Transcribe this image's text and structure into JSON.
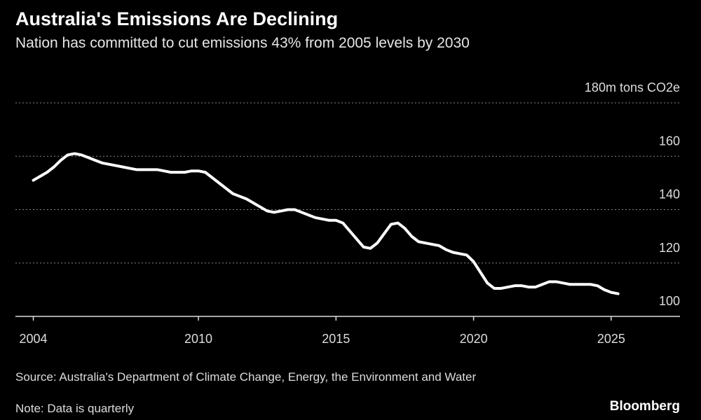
{
  "chart_data": {
    "type": "line",
    "title": "Australia's Emissions Are Declining",
    "subtitle": "Nation has committed to cut emissions 43% from 2005 levels by 2030",
    "source": "Source: Australia's Department of Climate Change, Energy, the Environment and Water",
    "note": "Note: Data is quarterly",
    "credit": "Bloomberg",
    "x": [
      2004,
      2004.25,
      2004.5,
      2004.75,
      2005,
      2005.25,
      2005.5,
      2005.75,
      2006,
      2006.25,
      2006.5,
      2006.75,
      2007,
      2007.25,
      2007.5,
      2007.75,
      2008,
      2008.25,
      2008.5,
      2008.75,
      2009,
      2009.25,
      2009.5,
      2009.75,
      2010,
      2010.25,
      2010.5,
      2010.75,
      2011,
      2011.25,
      2011.5,
      2011.75,
      2012,
      2012.25,
      2012.5,
      2012.75,
      2013,
      2013.25,
      2013.5,
      2013.75,
      2014,
      2014.25,
      2014.5,
      2014.75,
      2015,
      2015.25,
      2015.5,
      2015.75,
      2016,
      2016.25,
      2016.5,
      2016.75,
      2017,
      2017.25,
      2017.5,
      2017.75,
      2018,
      2018.25,
      2018.5,
      2018.75,
      2019,
      2019.25,
      2019.5,
      2019.75,
      2020,
      2020.25,
      2020.5,
      2020.75,
      2021,
      2021.25,
      2021.5,
      2021.75,
      2022,
      2022.25,
      2022.5,
      2022.75,
      2023,
      2023.25,
      2023.5,
      2023.75,
      2024,
      2024.25,
      2024.5,
      2024.75,
      2025,
      2025.25
    ],
    "series": [
      {
        "name": "Emissions",
        "color": "#ffffff",
        "values": [
          151,
          152.5,
          154,
          156,
          158.5,
          160.5,
          161,
          160.5,
          159.5,
          158.5,
          157.5,
          157,
          156.5,
          156,
          155.5,
          155,
          155,
          155,
          155,
          154.5,
          154,
          154,
          154,
          154.5,
          154.5,
          154,
          152,
          150,
          148,
          146,
          145,
          144,
          142.5,
          141,
          139.5,
          139,
          139.5,
          140,
          140,
          139,
          138,
          137,
          136.5,
          136,
          136,
          135,
          132,
          129,
          126,
          125.5,
          127.5,
          131,
          134.5,
          135,
          133,
          130,
          128,
          127.5,
          127,
          126.5,
          125,
          124,
          123.5,
          123,
          120.5,
          116.5,
          112.5,
          110.5,
          110.5,
          111,
          111.5,
          111.5,
          111,
          111,
          112,
          113,
          113,
          112.5,
          112,
          112,
          112,
          112,
          111.5,
          110,
          109,
          108.5
        ]
      }
    ],
    "xlim": [
      2003.35,
      2027.5
    ],
    "xticks": [
      2004,
      2010,
      2015,
      2020,
      2025
    ],
    "ylim": [
      100,
      180
    ],
    "yticks": [
      100,
      120,
      140,
      160,
      {
        "value": 180,
        "label": "180m tons CO2e"
      }
    ],
    "grid": true
  }
}
